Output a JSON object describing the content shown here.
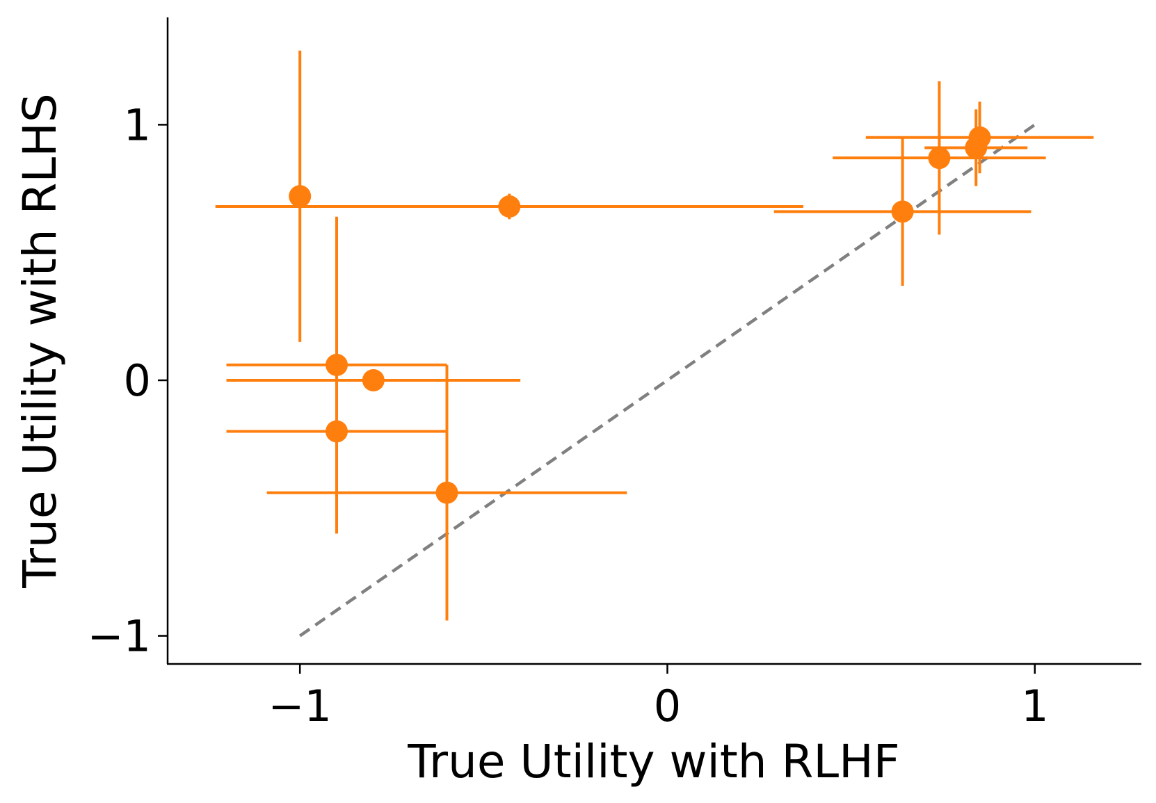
{
  "chart_data": {
    "type": "scatter",
    "xlabel": "True Utility with RLHF",
    "ylabel": "True Utility with RLHS",
    "xlim": [
      -1.36,
      1.29
    ],
    "ylim": [
      -1.11,
      1.42
    ],
    "xticks": [
      {
        "value": -1,
        "label": "−1"
      },
      {
        "value": 0,
        "label": "0"
      },
      {
        "value": 1,
        "label": "1"
      }
    ],
    "yticks": [
      {
        "value": -1,
        "label": "−1"
      },
      {
        "value": 0,
        "label": "0"
      },
      {
        "value": 1,
        "label": "1"
      }
    ],
    "grid": false,
    "series_color": "#ff7f0e",
    "reference_line": {
      "x": [
        -1,
        1
      ],
      "y": [
        -1,
        1
      ],
      "color": "#808080",
      "style": "dashed"
    },
    "points": [
      {
        "x": -1.0,
        "y": 0.72,
        "xerr": 0.0,
        "yerr": 0.57
      },
      {
        "x": -0.43,
        "y": 0.68,
        "xerr": 0.8,
        "yerr": 0.05
      },
      {
        "x": -0.9,
        "y": 0.06,
        "xerr": 0.3,
        "yerr": 0.58
      },
      {
        "x": -0.8,
        "y": 0.0,
        "xerr": 0.4,
        "yerr": 0.0
      },
      {
        "x": -0.9,
        "y": -0.2,
        "xerr": 0.3,
        "yerr": 0.4
      },
      {
        "x": -0.6,
        "y": -0.44,
        "xerr": 0.49,
        "yerr": 0.5
      },
      {
        "x": 0.64,
        "y": 0.66,
        "xerr": 0.35,
        "yerr": 0.29
      },
      {
        "x": 0.74,
        "y": 0.87,
        "xerr": 0.29,
        "yerr": 0.3
      },
      {
        "x": 0.84,
        "y": 0.91,
        "xerr": 0.14,
        "yerr": 0.15
      },
      {
        "x": 0.85,
        "y": 0.95,
        "xerr": 0.31,
        "yerr": 0.14
      }
    ]
  }
}
